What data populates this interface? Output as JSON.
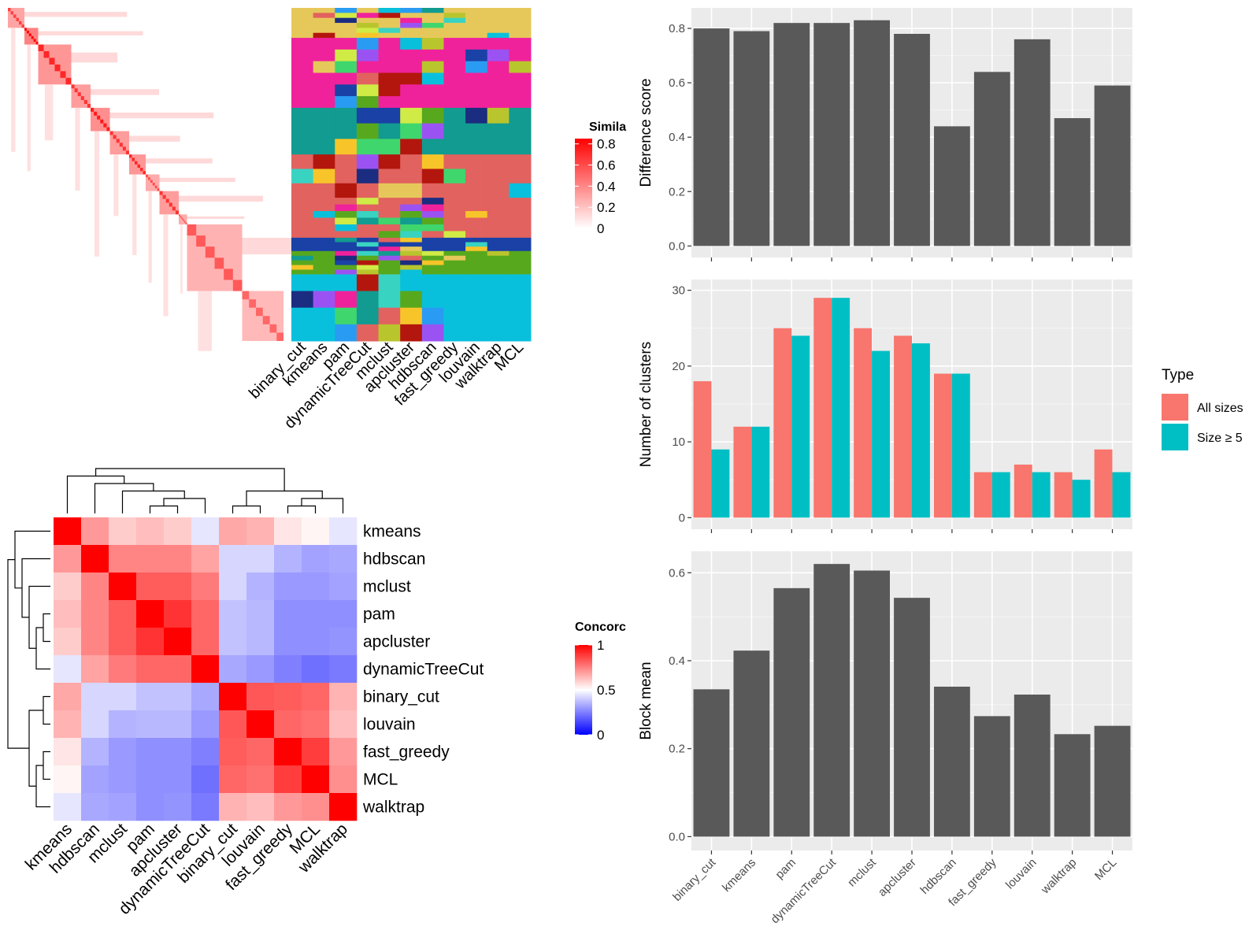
{
  "methods_a": [
    "binary_cut",
    "kmeans",
    "pam",
    "dynamicTreeCut",
    "mclust",
    "apcluster",
    "hdbscan",
    "fast_greedy",
    "louvain",
    "walktrap",
    "MCL"
  ],
  "similarity_heatmap": {
    "legend_title": "Simila",
    "legend_ticks": [
      "0.8",
      "0.6",
      "0.4",
      "0.2",
      "0"
    ],
    "legend_values": [
      0.8,
      0.6,
      0.4,
      0.2,
      0
    ],
    "colors": {
      "low": "#ffffff",
      "high": "#ff0000"
    },
    "blocks": [
      0.06,
      0.05,
      0.12,
      0.07,
      0.07,
      0.07,
      0.06,
      0.05,
      0.07,
      0.03,
      0.2,
      0.15
    ],
    "block_strength": [
      0.65,
      0.9,
      0.75,
      0.7,
      0.8,
      0.7,
      0.75,
      0.6,
      0.7,
      0.6,
      0.55,
      0.5
    ]
  },
  "membership_matrix": {
    "palette": [
      "#f0229b",
      "#129b90",
      "#e1625f",
      "#1a41a6",
      "#09c0dc",
      "#e6c85a",
      "#58a81e",
      "#1b2d80",
      "#f7c52a",
      "#39d3c2",
      "#9a53f2",
      "#3fd66d",
      "#b9c52d",
      "#b3160d",
      "#2a9bf2",
      "#d0eb46"
    ],
    "row_groups": [
      0.09,
      0.21,
      0.14,
      0.13,
      0.12,
      0.04,
      0.07,
      0.2
    ],
    "row_group_colors": [
      5,
      0,
      1,
      2,
      2,
      3,
      6,
      4
    ]
  },
  "concordance_heatmap": {
    "row_labels": [
      "kmeans",
      "hdbscan",
      "mclust",
      "pam",
      "apcluster",
      "dynamicTreeCut",
      "binary_cut",
      "louvain",
      "fast_greedy",
      "MCL",
      "walktrap"
    ],
    "col_labels": [
      "kmeans",
      "hdbscan",
      "mclust",
      "pam",
      "apcluster",
      "dynamicTreeCut",
      "binary_cut",
      "louvain",
      "fast_greedy",
      "MCL",
      "walktrap"
    ],
    "legend_title": "Concorc",
    "legend_ticks": [
      "1",
      "0.5",
      "0"
    ],
    "legend_values": [
      1,
      0.5,
      0
    ],
    "colors": {
      "low": "#0000ff",
      "mid": "#ffffff",
      "high": "#ff0000"
    },
    "values": [
      [
        1.0,
        0.7,
        0.6,
        0.63,
        0.6,
        0.45,
        0.67,
        0.65,
        0.55,
        0.52,
        0.45
      ],
      [
        0.7,
        1.0,
        0.74,
        0.74,
        0.74,
        0.68,
        0.42,
        0.42,
        0.35,
        0.32,
        0.33
      ],
      [
        0.6,
        0.74,
        1.0,
        0.82,
        0.82,
        0.76,
        0.42,
        0.35,
        0.3,
        0.3,
        0.32
      ],
      [
        0.63,
        0.74,
        0.82,
        1.0,
        0.9,
        0.8,
        0.38,
        0.36,
        0.28,
        0.28,
        0.28
      ],
      [
        0.6,
        0.74,
        0.82,
        0.9,
        1.0,
        0.8,
        0.38,
        0.36,
        0.28,
        0.28,
        0.29
      ],
      [
        0.45,
        0.68,
        0.76,
        0.8,
        0.8,
        1.0,
        0.33,
        0.3,
        0.25,
        0.22,
        0.24
      ],
      [
        0.67,
        0.42,
        0.42,
        0.38,
        0.38,
        0.33,
        1.0,
        0.83,
        0.82,
        0.8,
        0.65
      ],
      [
        0.65,
        0.42,
        0.35,
        0.36,
        0.36,
        0.3,
        0.83,
        1.0,
        0.8,
        0.78,
        0.63
      ],
      [
        0.55,
        0.35,
        0.3,
        0.28,
        0.28,
        0.25,
        0.82,
        0.8,
        1.0,
        0.88,
        0.7
      ],
      [
        0.52,
        0.32,
        0.3,
        0.28,
        0.28,
        0.22,
        0.8,
        0.78,
        0.88,
        1.0,
        0.72
      ],
      [
        0.45,
        0.33,
        0.32,
        0.28,
        0.29,
        0.24,
        0.65,
        0.63,
        0.7,
        0.72,
        1.0
      ]
    ]
  },
  "chart_data": [
    {
      "type": "bar",
      "categories": [
        "binary_cut",
        "kmeans",
        "pam",
        "dynamicTreeCut",
        "mclust",
        "apcluster",
        "hdbscan",
        "fast_greedy",
        "louvain",
        "walktrap",
        "MCL"
      ],
      "values": [
        0.8,
        0.79,
        0.82,
        0.82,
        0.83,
        0.78,
        0.44,
        0.64,
        0.76,
        0.47,
        0.59
      ],
      "ylabel": "Difference score",
      "ylim": [
        0,
        0.85
      ],
      "yticks": [
        "0.0",
        "0.2",
        "0.4",
        "0.6",
        "0.8"
      ],
      "ytick_values": [
        0,
        0.2,
        0.4,
        0.6,
        0.8
      ],
      "grid": true,
      "bar_color": "#595959"
    },
    {
      "type": "bar",
      "categories": [
        "binary_cut",
        "kmeans",
        "pam",
        "dynamicTreeCut",
        "mclust",
        "apcluster",
        "hdbscan",
        "fast_greedy",
        "louvain",
        "walktrap",
        "MCL"
      ],
      "series": [
        {
          "name": "All sizes",
          "values": [
            18,
            12,
            25,
            29,
            25,
            24,
            19,
            6,
            7,
            6,
            9
          ],
          "color": "#f8766d"
        },
        {
          "name": "Size ≥ 5",
          "values": [
            9,
            12,
            24,
            29,
            22,
            23,
            19,
            6,
            6,
            5,
            6
          ],
          "color": "#00bfc4"
        }
      ],
      "ylabel": "Number of clusters",
      "ylim": [
        0,
        30.5
      ],
      "yticks": [
        "0",
        "10",
        "20",
        "30"
      ],
      "ytick_values": [
        0,
        10,
        20,
        30
      ],
      "legend_title": "Type",
      "legend_position": "right",
      "grid": true
    },
    {
      "type": "bar",
      "categories": [
        "binary_cut",
        "kmeans",
        "pam",
        "dynamicTreeCut",
        "mclust",
        "apcluster",
        "hdbscan",
        "fast_greedy",
        "louvain",
        "walktrap",
        "MCL"
      ],
      "values": [
        0.335,
        0.423,
        0.565,
        0.62,
        0.605,
        0.543,
        0.341,
        0.274,
        0.323,
        0.233,
        0.252
      ],
      "ylabel": "Block mean",
      "ylim": [
        0,
        0.63
      ],
      "yticks": [
        "0.0",
        "0.2",
        "0.4",
        "0.6"
      ],
      "ytick_values": [
        0,
        0.2,
        0.4,
        0.6
      ],
      "grid": true,
      "bar_color": "#595959"
    }
  ]
}
